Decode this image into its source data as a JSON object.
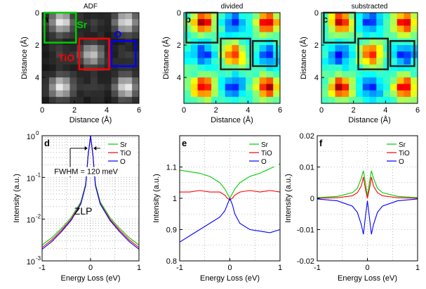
{
  "colors": {
    "sr": "#00cc00",
    "tio": "#ff0000",
    "o": "#0000ff",
    "frame": "#000000"
  },
  "panels_top": [
    {
      "letter": "a",
      "title": "ADF",
      "type": "heatmap",
      "colormap": "gray",
      "xlabel": "Distance (Å)",
      "ylabel": "Distance (Å)",
      "xticks": [
        "0",
        "2",
        "4",
        "6"
      ],
      "yticks": [
        "0",
        "2",
        "4"
      ],
      "box_labels": [
        "Sr",
        "TiO",
        "O"
      ]
    },
    {
      "letter": "b",
      "title": "divided",
      "type": "heatmap",
      "colormap": "jet",
      "xlabel": "Distance (Å)",
      "ylabel": "Distance (Å)",
      "xticks": [
        "0",
        "2",
        "4",
        "6"
      ],
      "yticks": [
        "0",
        "2",
        "4"
      ]
    },
    {
      "letter": "c",
      "title": "substracted",
      "type": "heatmap",
      "colormap": "jet",
      "xlabel": "Distance (Å)",
      "ylabel": "Distance (Å)",
      "xticks": [
        "0",
        "2",
        "4",
        "6"
      ],
      "yticks": [
        "0",
        "2",
        "4"
      ]
    }
  ],
  "chart_data": [
    {
      "panel": "d",
      "type": "line",
      "xlabel": "Energy Loss (eV)",
      "ylabel": "Intensity (a.u.)",
      "xlim": [
        -1,
        1
      ],
      "ylim": [
        0.001,
        1
      ],
      "yscale": "log",
      "xticks": [
        "-1",
        "0",
        "1"
      ],
      "yticks": [
        "10",
        "10",
        "10",
        "10"
      ],
      "ytick_exponents": [
        "-3",
        "-2",
        "-1",
        "0"
      ],
      "grid": true,
      "legend": "top-right",
      "annotations": [
        "FWHM = 120 meV",
        "ZLP"
      ],
      "series": [
        {
          "name": "Sr",
          "x": [
            -1,
            -0.8,
            -0.6,
            -0.4,
            -0.2,
            -0.1,
            -0.05,
            0,
            0.05,
            0.1,
            0.2,
            0.4,
            0.6,
            0.8,
            1
          ],
          "y": [
            0.0024,
            0.0036,
            0.006,
            0.011,
            0.026,
            0.07,
            0.35,
            1.0,
            0.35,
            0.07,
            0.026,
            0.011,
            0.006,
            0.0036,
            0.0024
          ]
        },
        {
          "name": "TiO",
          "x": [
            -1,
            -0.8,
            -0.6,
            -0.4,
            -0.2,
            -0.1,
            -0.05,
            0,
            0.05,
            0.1,
            0.2,
            0.4,
            0.6,
            0.8,
            1
          ],
          "y": [
            0.0021,
            0.0032,
            0.0054,
            0.01,
            0.024,
            0.066,
            0.34,
            1.0,
            0.34,
            0.066,
            0.024,
            0.01,
            0.0054,
            0.0032,
            0.0021
          ]
        },
        {
          "name": "O",
          "x": [
            -1,
            -0.8,
            -0.6,
            -0.4,
            -0.2,
            -0.1,
            -0.05,
            0,
            0.05,
            0.1,
            0.2,
            0.4,
            0.6,
            0.8,
            1
          ],
          "y": [
            0.0019,
            0.0029,
            0.005,
            0.0094,
            0.023,
            0.064,
            0.33,
            1.0,
            0.33,
            0.064,
            0.023,
            0.0094,
            0.005,
            0.0029,
            0.0019
          ]
        }
      ]
    },
    {
      "panel": "e",
      "type": "line",
      "xlabel": "Energy Loss (eV)",
      "ylabel": "Intensity (a.u.)",
      "xlim": [
        -1,
        1
      ],
      "ylim": [
        0.8,
        1.2
      ],
      "xticks": [
        "-1",
        "0",
        "1"
      ],
      "yticks": [
        "0.8",
        "0.9",
        "1",
        "1.1"
      ],
      "grid": true,
      "legend": "top-right",
      "series": [
        {
          "name": "Sr",
          "x": [
            -1,
            -0.8,
            -0.6,
            -0.4,
            -0.2,
            -0.1,
            -0.05,
            0,
            0.05,
            0.1,
            0.2,
            0.4,
            0.6,
            0.8,
            1
          ],
          "y": [
            1.09,
            1.085,
            1.08,
            1.07,
            1.05,
            1.03,
            1.015,
            1.0,
            1.015,
            1.03,
            1.05,
            1.07,
            1.08,
            1.095,
            1.11
          ]
        },
        {
          "name": "TiO",
          "x": [
            -1,
            -0.8,
            -0.6,
            -0.4,
            -0.2,
            -0.1,
            -0.05,
            0,
            0.05,
            0.1,
            0.2,
            0.4,
            0.6,
            0.8,
            1
          ],
          "y": [
            1.02,
            1.02,
            1.025,
            1.02,
            1.02,
            1.01,
            1.0,
            0.995,
            1.0,
            1.01,
            1.02,
            1.025,
            1.02,
            1.025,
            1.02
          ]
        },
        {
          "name": "O",
          "x": [
            -1,
            -0.8,
            -0.6,
            -0.4,
            -0.2,
            -0.1,
            -0.05,
            0,
            0.05,
            0.1,
            0.2,
            0.4,
            0.6,
            0.8,
            1
          ],
          "y": [
            0.86,
            0.88,
            0.9,
            0.92,
            0.94,
            0.96,
            0.98,
            1.0,
            0.98,
            0.95,
            0.92,
            0.9,
            0.895,
            0.89,
            0.9
          ]
        }
      ]
    },
    {
      "panel": "f",
      "type": "line",
      "xlabel": "Energy Loss (eV)",
      "ylabel": "Intensity (a.u.)",
      "xlim": [
        -1,
        1
      ],
      "ylim": [
        -0.02,
        0.02
      ],
      "xticks": [
        "-1",
        "0",
        "1"
      ],
      "yticks": [
        "-0.02",
        "-0.01",
        "0",
        "0.01",
        "0.02"
      ],
      "grid": true,
      "legend": "top-right",
      "series": [
        {
          "name": "Sr",
          "x": [
            -1,
            -0.6,
            -0.3,
            -0.2,
            -0.12,
            -0.08,
            -0.04,
            0,
            0.04,
            0.08,
            0.12,
            0.2,
            0.3,
            0.6,
            1
          ],
          "y": [
            0.0002,
            0.0006,
            0.0018,
            0.0032,
            0.0065,
            0.0088,
            0.005,
            0.0005,
            0.005,
            0.0088,
            0.0065,
            0.0032,
            0.0018,
            0.0006,
            0.0002
          ]
        },
        {
          "name": "TiO",
          "x": [
            -1,
            -0.6,
            -0.3,
            -0.2,
            -0.12,
            -0.08,
            -0.04,
            0,
            0.04,
            0.08,
            0.12,
            0.2,
            0.3,
            0.6,
            1
          ],
          "y": [
            0.0,
            0.0002,
            0.0008,
            0.0018,
            0.004,
            0.0068,
            0.003,
            0.0,
            0.003,
            0.0068,
            0.004,
            0.0018,
            0.0008,
            0.0002,
            0.0
          ]
        },
        {
          "name": "O",
          "x": [
            -1,
            -0.6,
            -0.3,
            -0.2,
            -0.12,
            -0.08,
            -0.04,
            0,
            0.04,
            0.08,
            0.12,
            0.2,
            0.3,
            0.6,
            1
          ],
          "y": [
            -0.0002,
            -0.0008,
            -0.0025,
            -0.0045,
            -0.0085,
            -0.0115,
            -0.006,
            -0.0008,
            -0.006,
            -0.0115,
            -0.0085,
            -0.0045,
            -0.0025,
            -0.0008,
            -0.0002
          ]
        }
      ]
    }
  ]
}
